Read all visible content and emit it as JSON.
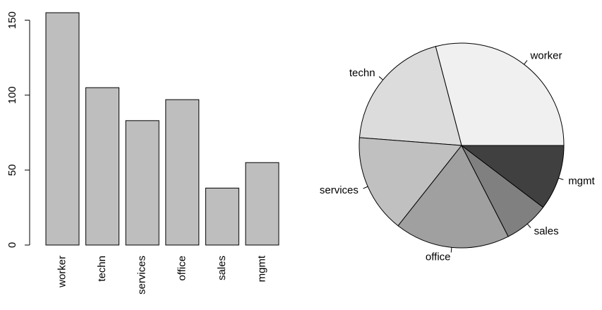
{
  "chart_data": [
    {
      "type": "bar",
      "categories": [
        "worker",
        "techn",
        "services",
        "office",
        "sales",
        "mgmt"
      ],
      "values": [
        155,
        105,
        83,
        97,
        38,
        55
      ],
      "color": "#bebebe",
      "ylim": [
        0,
        155
      ],
      "yticks": [
        0,
        50,
        100,
        150
      ]
    },
    {
      "type": "pie",
      "categories": [
        "worker",
        "techn",
        "services",
        "office",
        "sales",
        "mgmt"
      ],
      "values": [
        155,
        105,
        83,
        97,
        38,
        55
      ],
      "colors": [
        "#f0f0f0",
        "#dcdcdc",
        "#c0c0c0",
        "#a0a0a0",
        "#808080",
        "#404040"
      ]
    }
  ]
}
